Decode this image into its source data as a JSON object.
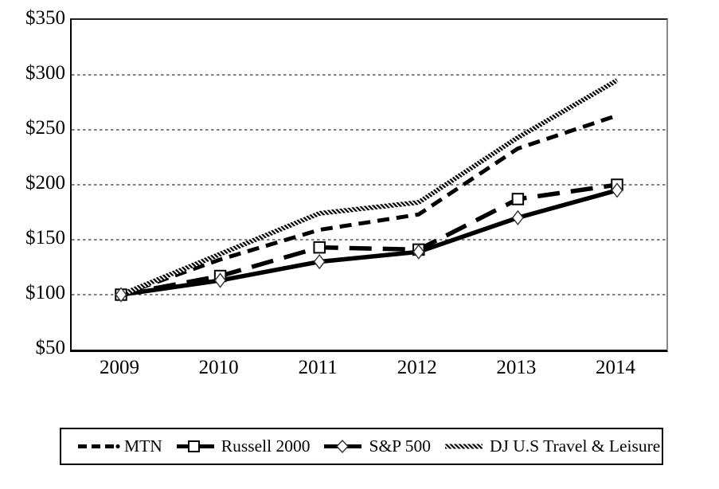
{
  "chart": {
    "y_axis": {
      "tick_labels": [
        "$350",
        "$300",
        "$250",
        "$200",
        "$150",
        "$100",
        "$50"
      ]
    },
    "x_axis": {
      "tick_labels": [
        "2009",
        "2010",
        "2011",
        "2012",
        "2013",
        "2014"
      ]
    }
  },
  "chart_data": {
    "type": "line",
    "title": "",
    "xlabel": "",
    "ylabel": "",
    "x": [
      2009,
      2010,
      2011,
      2012,
      2013,
      2014
    ],
    "series": [
      {
        "name": "MTN",
        "style": "thick-dashed",
        "marker": "none",
        "values": [
          100,
          132,
          159,
          173,
          233,
          263
        ]
      },
      {
        "name": "Russell 2000",
        "style": "long-dash",
        "marker": "square",
        "values": [
          100,
          117,
          143,
          141,
          187,
          200
        ]
      },
      {
        "name": "S&P 500",
        "style": "solid",
        "marker": "diamond",
        "values": [
          100,
          113,
          130,
          139,
          170,
          195
        ]
      },
      {
        "name": "DJ U.S Travel & Leisure",
        "style": "hatched-thin",
        "marker": "none",
        "values": [
          100,
          137,
          174,
          184,
          243,
          295
        ]
      }
    ],
    "ylim": [
      50,
      350
    ],
    "y_tick_step": 50,
    "y_tick_prefix": "$",
    "grid": "horizontal-dashed",
    "legend_position": "bottom",
    "colors": {
      "line": "#000000",
      "grid": "#000000",
      "background": "#ffffff",
      "marker_fill": "#ffffff"
    }
  }
}
